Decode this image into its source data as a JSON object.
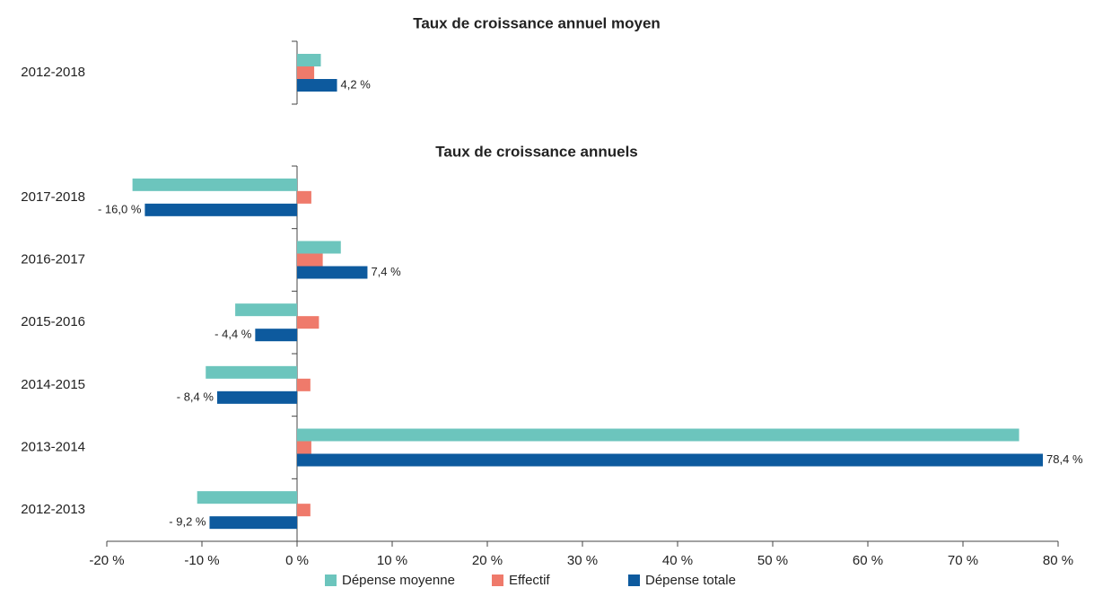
{
  "chart_data": [
    {
      "type": "barh",
      "title": "Taux de croissance annuel moyen",
      "categories": [
        "2012-2018"
      ],
      "xlim": [
        -20,
        80
      ],
      "series": [
        {
          "color": "#6cc5bd",
          "values": [
            2.5
          ]
        },
        {
          "color": "#ef7a6b",
          "values": [
            1.8
          ]
        },
        {
          "color": "#0d5a9e",
          "values": [
            4.2
          ],
          "value_labels": [
            "4,2 %"
          ]
        }
      ]
    },
    {
      "type": "barh",
      "title": "Taux de croissance annuels",
      "categories": [
        "2017-2018",
        "2016-2017",
        "2015-2016",
        "2014-2015",
        "2013-2014",
        "2012-2013"
      ],
      "xlim": [
        -20,
        80
      ],
      "xticks": [
        {
          "value": -20,
          "label": "-20 %"
        },
        {
          "value": -10,
          "label": "-10 %"
        },
        {
          "value": 0,
          "label": "0 %"
        },
        {
          "value": 10,
          "label": "10 %"
        },
        {
          "value": 20,
          "label": "20 %"
        },
        {
          "value": 30,
          "label": "30 %"
        },
        {
          "value": 40,
          "label": "40 %"
        },
        {
          "value": 50,
          "label": "50 %"
        },
        {
          "value": 60,
          "label": "60 %"
        },
        {
          "value": 70,
          "label": "70 %"
        },
        {
          "value": 80,
          "label": "80 %"
        }
      ],
      "series": [
        {
          "name": "Dépense moyenne",
          "color": "#6cc5bd",
          "values": [
            -17.3,
            4.6,
            -6.5,
            -9.6,
            75.9,
            -10.5
          ]
        },
        {
          "name": "Effectif",
          "color": "#ef7a6b",
          "values": [
            1.5,
            2.7,
            2.3,
            1.4,
            1.5,
            1.4
          ]
        },
        {
          "name": "Dépense totale",
          "color": "#0d5a9e",
          "values": [
            -16.0,
            7.4,
            -4.4,
            -8.4,
            78.4,
            -9.2
          ],
          "value_labels": [
            "- 16,0 %",
            "7,4 %",
            "- 4,4 %",
            "- 8,4 %",
            "78,4 %",
            "- 9,2 %"
          ]
        }
      ]
    }
  ]
}
